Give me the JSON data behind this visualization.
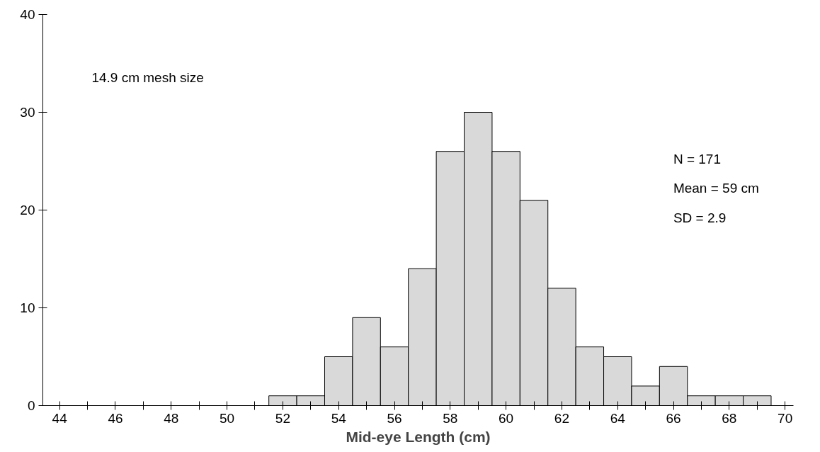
{
  "chart_data": {
    "type": "histogram",
    "xlabel": "Mid-eye Length (cm)",
    "bins": [
      51.5,
      52.5,
      53.5,
      54.5,
      55.5,
      56.5,
      57.5,
      58.5,
      59.5,
      60.5,
      61.5,
      62.5,
      63.5,
      64.5,
      65.5,
      66.5,
      67.5,
      68.5,
      69.5
    ],
    "values": [
      1,
      1,
      5,
      9,
      6,
      14,
      26,
      30,
      26,
      21,
      12,
      6,
      5,
      2,
      4,
      1,
      1,
      1
    ],
    "color": "#d9d9d9",
    "xlim": [
      43.4,
      70.3
    ],
    "ylim": [
      0,
      40
    ],
    "xticks": [
      44,
      {
        "value": 45,
        "label": null
      },
      46,
      {
        "value": 47,
        "label": null
      },
      48,
      {
        "value": 49,
        "label": null
      },
      50,
      {
        "value": 51,
        "label": null
      },
      52,
      {
        "value": 53,
        "label": null
      },
      54,
      {
        "value": 55,
        "label": null
      },
      56,
      {
        "value": 57,
        "label": null
      },
      58,
      {
        "value": 59,
        "label": null
      },
      60,
      {
        "value": 61,
        "label": null
      },
      62,
      {
        "value": 63,
        "label": null
      },
      64,
      {
        "value": 65,
        "label": null
      },
      66,
      {
        "value": 67,
        "label": null
      },
      68,
      {
        "value": 69,
        "label": null
      },
      70
    ],
    "yticks": [
      0,
      10,
      20,
      30,
      40
    ],
    "grid": false,
    "annotations": [
      "14.9 cm mesh size",
      "N = 171",
      "Mean = 59 cm",
      "SD = 2.9"
    ]
  }
}
